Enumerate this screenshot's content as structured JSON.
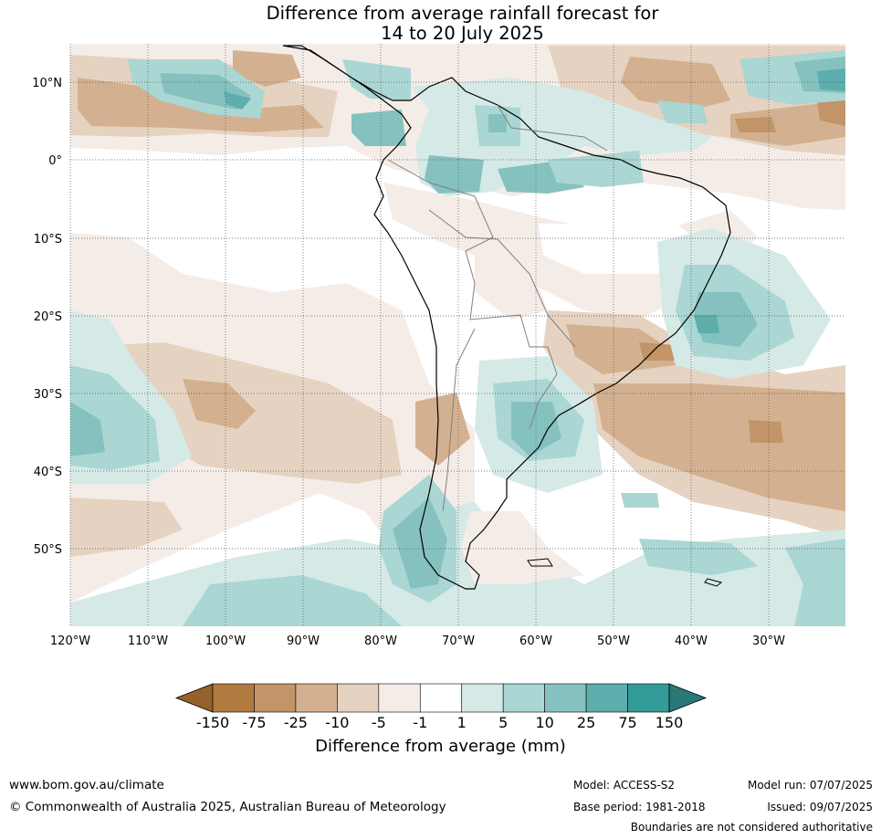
{
  "title_line1": "Difference from average rainfall forecast for",
  "title_line2": "14 to 20 July 2025",
  "lat_labels": [
    "10°N",
    "0°",
    "10°S",
    "20°S",
    "30°S",
    "40°S",
    "50°S"
  ],
  "lon_labels": [
    "120°W",
    "110°W",
    "100°W",
    "90°W",
    "80°W",
    "70°W",
    "60°W",
    "50°W",
    "40°W",
    "30°W"
  ],
  "colorbar": {
    "label": "Difference from average (mm)",
    "ticks": [
      "-150",
      "-75",
      "-25",
      "-10",
      "-5",
      "-1",
      "1",
      "5",
      "10",
      "25",
      "75",
      "150"
    ],
    "colors": [
      "#96602c",
      "#b07a41",
      "#c29467",
      "#d3b08f",
      "#e6d2c0",
      "#f4ece7",
      "#ffffff",
      "#d5e9e7",
      "#aad6d3",
      "#85c2bf",
      "#5daead",
      "#339c99",
      "#2a7878"
    ]
  },
  "footer": {
    "website": "www.bom.gov.au/climate",
    "copyright": "© Commonwealth of Australia 2025, Australian Bureau of Meteorology",
    "model": "Model: ACCESS-S2",
    "base_period": "Base period: 1981-2018",
    "model_run": "Model run: 07/07/2025",
    "issued": "Issued: 09/07/2025",
    "disclaimer": "Boundaries are not considered authoritative"
  }
}
